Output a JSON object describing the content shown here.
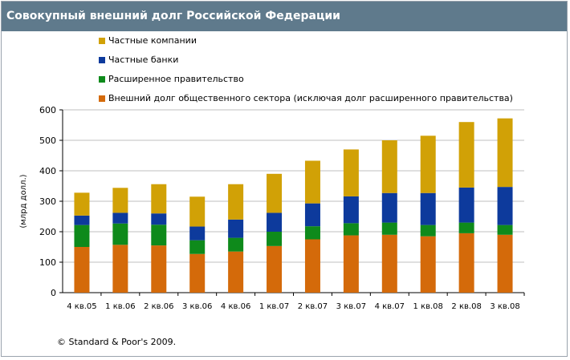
{
  "title": "Совокупный внешний долг Российской Федерации",
  "copyright": "© Standard & Poor's 2009.",
  "colors": {
    "title_bar": "#5f7a8c",
    "public_sector": "#d46a0a",
    "general_government": "#0e8a1b",
    "private_banks": "#0d3a9c",
    "private_companies": "#d1a106"
  },
  "chart_data": {
    "type": "bar",
    "stacked": true,
    "title": "Совокупный внешний долг Российской Федерации",
    "xlabel": "",
    "ylabel": "(млрд долл.)",
    "ylim": [
      0,
      600
    ],
    "yticks": [
      0,
      100,
      200,
      300,
      400,
      500,
      600
    ],
    "grid": true,
    "legend_position": "top",
    "categories": [
      "4 кв.05",
      "1 кв.06",
      "2 кв.06",
      "3 кв.06",
      "4 кв.06",
      "1 кв.07",
      "2 кв.07",
      "3 кв.07",
      "4 кв.07",
      "1 кв.08",
      "2 кв.08",
      "3 кв.08"
    ],
    "series": [
      {
        "name": "Внешний долг общественного сектора (исключая долг расширенного правительства)",
        "color": "#d46a0a",
        "values": [
          150,
          157,
          155,
          127,
          135,
          153,
          175,
          188,
          190,
          185,
          195,
          190
        ]
      },
      {
        "name": "Расширенное правительство",
        "color": "#0e8a1b",
        "values": [
          72,
          70,
          68,
          45,
          45,
          47,
          43,
          40,
          40,
          37,
          35,
          32
        ]
      },
      {
        "name": "Частные банки",
        "color": "#0d3a9c",
        "values": [
          31,
          35,
          37,
          45,
          60,
          62,
          75,
          88,
          97,
          105,
          115,
          125
        ]
      },
      {
        "name": "Частные компании",
        "color": "#d1a106",
        "values": [
          75,
          82,
          96,
          98,
          116,
          128,
          140,
          154,
          173,
          188,
          215,
          225
        ]
      }
    ]
  }
}
